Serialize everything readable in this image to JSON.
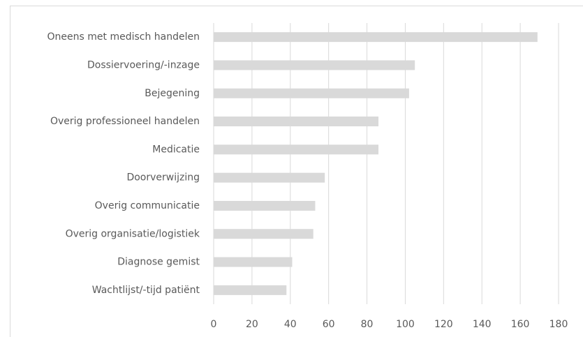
{
  "chart_data": {
    "type": "bar",
    "orientation": "horizontal",
    "categories": [
      "Oneens met medisch handelen",
      "Dossiervoering/-inzage",
      "Bejegening",
      "Overig professioneel handelen",
      "Medicatie",
      "Doorverwijzing",
      "Overig communicatie",
      "Overig organisatie/logistiek",
      "Diagnose gemist",
      "Wachtlijst/-tijd patiënt"
    ],
    "values": [
      169,
      105,
      102,
      86,
      86,
      58,
      53,
      52,
      41,
      38
    ],
    "color": "#d9d9d9",
    "xlim": [
      0,
      180
    ],
    "xticks": [
      0,
      20,
      40,
      60,
      80,
      100,
      120,
      140,
      160,
      180
    ],
    "grid": true
  }
}
